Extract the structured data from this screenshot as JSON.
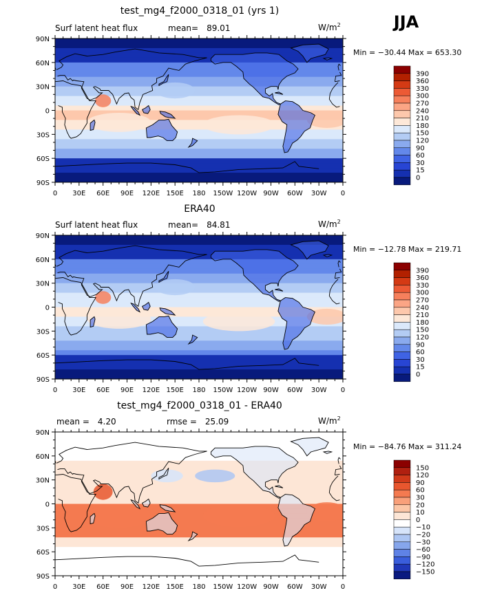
{
  "season": "JJA",
  "panels": [
    {
      "title": "test_mg4_f2000_0318_01 (yrs 1)",
      "left_label": "Surf latent heat flux",
      "stat_label": "mean=",
      "stat_value": "89.01",
      "stat2_label": "",
      "stat2_value": "",
      "units": "W/m",
      "units_sup": "2",
      "minmax": "Min = −30.44  Max = 653.30",
      "colorbar": {
        "levels": [
          "390",
          "360",
          "330",
          "300",
          "270",
          "240",
          "210",
          "180",
          "150",
          "120",
          "90",
          "60",
          "30",
          "15",
          "0"
        ],
        "colors": [
          "#8b0000",
          "#b22000",
          "#d43a14",
          "#ec5a35",
          "#f6805c",
          "#fba585",
          "#fdc8ac",
          "#fde8d8",
          "#dbe9fb",
          "#b3ccf4",
          "#8aaaee",
          "#6388ea",
          "#3f63e4",
          "#2845d4",
          "#1530b0",
          "#081a7c"
        ]
      }
    },
    {
      "title": "ERA40",
      "left_label": "Surf latent heat flux",
      "stat_label": "mean=",
      "stat_value": "84.81",
      "stat2_label": "",
      "stat2_value": "",
      "units": "W/m",
      "units_sup": "2",
      "minmax": "Min = −12.78  Max = 219.71",
      "colorbar": {
        "levels": [
          "390",
          "360",
          "330",
          "300",
          "270",
          "240",
          "210",
          "180",
          "150",
          "120",
          "90",
          "60",
          "30",
          "15",
          "0"
        ],
        "colors": [
          "#8b0000",
          "#b22000",
          "#d43a14",
          "#ec5a35",
          "#f6805c",
          "#fba585",
          "#fdc8ac",
          "#fde8d8",
          "#dbe9fb",
          "#b3ccf4",
          "#8aaaee",
          "#6388ea",
          "#3f63e4",
          "#2845d4",
          "#1530b0",
          "#081a7c"
        ]
      }
    },
    {
      "title": "test_mg4_f2000_0318_01 - ERA40",
      "left_label": "",
      "stat_label": "mean =",
      "stat_value": "4.20",
      "stat2_label": "rmse =",
      "stat2_value": "25.09",
      "units": "W/m",
      "units_sup": "2",
      "minmax": "Min = −84.76  Max = 311.24",
      "colorbar": {
        "levels": [
          "150",
          "120",
          "90",
          "60",
          "30",
          "20",
          "10",
          "0",
          "−10",
          "−20",
          "−30",
          "−60",
          "−90",
          "−120",
          "−150"
        ],
        "colors": [
          "#8b0000",
          "#b02010",
          "#d03a1a",
          "#e8562e",
          "#f47a50",
          "#f9a07a",
          "#fcc6a6",
          "#fde6d6",
          "#ffffff",
          "#d6e4fa",
          "#adc6f3",
          "#86a6ec",
          "#5f82e6",
          "#3a5edc",
          "#2038b8",
          "#0a1a80"
        ]
      }
    }
  ],
  "axes": {
    "lat_ticks": [
      "90N",
      "60N",
      "30N",
      "0",
      "30S",
      "60S",
      "90S"
    ],
    "lon_ticks": [
      "0",
      "30E",
      "60E",
      "90E",
      "120E",
      "150E",
      "180",
      "150W",
      "120W",
      "90W",
      "60W",
      "30W",
      "0"
    ]
  }
}
